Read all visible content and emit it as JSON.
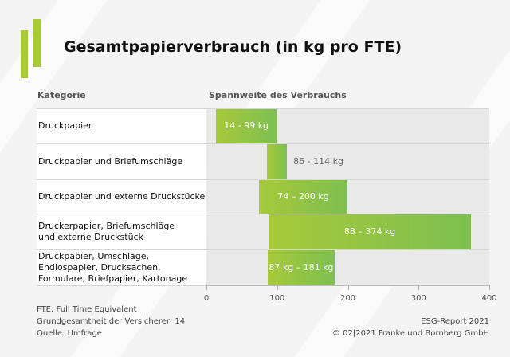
{
  "chart_data": {
    "type": "bar",
    "subtype": "floating-range-horizontal",
    "title": "Gesamtpapierverbrauch (in kg pro FTE)",
    "category_header": "Kategorie",
    "value_header": "Spannweite des Verbrauchs",
    "categories": [
      "Druckpapier",
      "Druckpapier und Briefumschläge",
      "Druckpapier und externe Druckstücke",
      "Druckerpapier, Briefumschläge\nund externe Druckstück",
      "Druckpapier, Umschläge,\nEndlospapier, Drucksachen,\nFormulare, Briefpapier, Kartonage"
    ],
    "ranges": [
      [
        14,
        99
      ],
      [
        86,
        114
      ],
      [
        74,
        200
      ],
      [
        88,
        374
      ],
      [
        87,
        181
      ]
    ],
    "labels": [
      "14 - 99 kg",
      "86 - 114 kg",
      "74 – 200 kg",
      "88 – 374 kg",
      "87 kg – 181 kg"
    ],
    "xlim": [
      0,
      400
    ],
    "xticks": [
      "0",
      "100",
      "200",
      "300",
      "400"
    ],
    "colors": {
      "bar_start": "#a8c93a",
      "bar_end": "#7dbf50",
      "background": "#e9e9e9"
    }
  },
  "footer": {
    "left": [
      "FTE: Full Time Equivalent",
      "Grundgesamtheit der Versicherer: 14",
      "Quelle: Umfrage"
    ],
    "right": [
      "ESG-Report 2021",
      "© 02|2021 Franke und Bornberg GmbH"
    ]
  }
}
